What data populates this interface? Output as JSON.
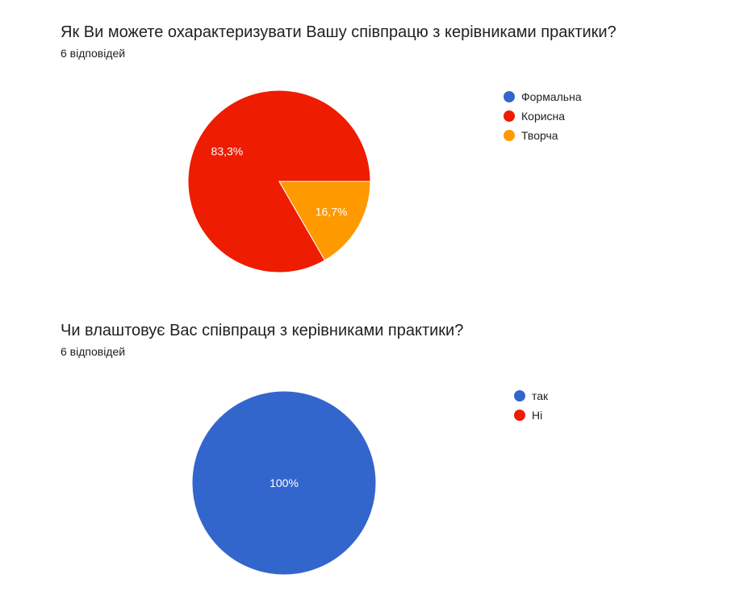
{
  "charts": [
    {
      "question": "Як Ви можете охарактеризувати Вашу співпрацю з керівниками практики?",
      "responses": "6 відповідей"
    },
    {
      "question": "Чи влаштовує Вас співпраця з керівниками практики?",
      "responses": "6 відповідей"
    }
  ],
  "chart_data": [
    {
      "type": "pie",
      "title": "Як Ви можете охарактеризувати Вашу співпрацю з керівниками практики?",
      "categories": [
        "Формальна",
        "Корисна",
        "Творча"
      ],
      "values": [
        0,
        5,
        1
      ],
      "percent_labels": [
        "",
        "83,3%",
        "16,7%"
      ],
      "colors": [
        "#3366cc",
        "#ee1c00",
        "#ff9900"
      ],
      "legend_position": "right"
    },
    {
      "type": "pie",
      "title": "Чи влаштовує Вас співпраця з керівниками практики?",
      "categories": [
        "так",
        "Ні"
      ],
      "values": [
        6,
        0
      ],
      "percent_labels": [
        "100%",
        ""
      ],
      "colors": [
        "#3366cc",
        "#ee1c00"
      ],
      "legend_position": "right"
    }
  ]
}
